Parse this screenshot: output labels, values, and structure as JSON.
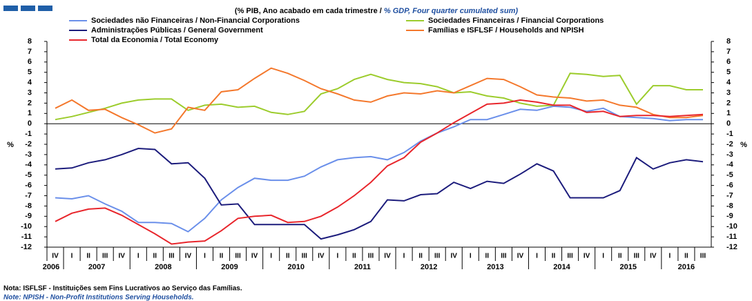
{
  "chart_data": {
    "type": "line",
    "title": "(% PIB, Ano acabado em cada trimestre / ",
    "subtitle": "% GDP, Four quarter cumulated sum)",
    "y_label": "%",
    "y2_label": "%",
    "categories": [
      "IV",
      "I",
      "II",
      "III",
      "IV",
      "I",
      "II",
      "III",
      "IV",
      "I",
      "II",
      "III",
      "IV",
      "I",
      "II",
      "III",
      "IV",
      "I",
      "II",
      "III",
      "IV",
      "I",
      "II",
      "III",
      "IV",
      "I",
      "II",
      "III",
      "IV",
      "I",
      "II",
      "III",
      "IV",
      "I",
      "II",
      "III",
      "IV",
      "I",
      "II",
      "III"
    ],
    "years": [
      "2006",
      "2007",
      "2008",
      "2009",
      "2010",
      "2011",
      "2012",
      "2013",
      "2014",
      "2015",
      "2016"
    ],
    "ylim": [
      -12,
      8
    ],
    "yticks": [
      -12,
      -11,
      -10,
      -9,
      -8,
      -7,
      -6,
      -5,
      -4,
      -3,
      -2,
      -1,
      0,
      1,
      2,
      3,
      4,
      5,
      6,
      7,
      8
    ],
    "y2lim": [
      -12,
      8
    ],
    "y2ticks": [
      -12,
      -11,
      -10,
      -9,
      -8,
      -7,
      -6,
      -5,
      -4,
      -3,
      -2,
      -1,
      0,
      1,
      2,
      3,
      4,
      5,
      6,
      7,
      8
    ],
    "series": [
      {
        "name": "Sociedades não Financeiras / Non-Financial Corporations",
        "color": "#6a8fea",
        "values": [
          -7.2,
          -7.3,
          -7.0,
          -7.8,
          -8.5,
          -9.6,
          -9.6,
          -9.7,
          -10.5,
          -9.2,
          -7.4,
          -6.2,
          -5.3,
          -5.5,
          -5.5,
          -5.1,
          -4.2,
          -3.5,
          -3.3,
          -3.2,
          -3.5,
          -2.8,
          -1.7,
          -0.9,
          -0.3,
          0.4,
          0.4,
          0.9,
          1.4,
          1.3,
          1.7,
          1.6,
          1.2,
          1.5,
          0.7,
          0.6,
          0.5,
          0.3,
          0.4,
          0.4
        ]
      },
      {
        "name": "Sociedades Financeiras / Financial Corporations",
        "color": "#9ccc2c",
        "values": [
          0.4,
          0.7,
          1.1,
          1.5,
          2.0,
          2.3,
          2.4,
          2.4,
          1.3,
          1.8,
          1.9,
          1.6,
          1.7,
          1.1,
          0.9,
          1.2,
          2.9,
          3.4,
          4.3,
          4.8,
          4.3,
          4.0,
          3.9,
          3.6,
          3.0,
          3.1,
          2.7,
          2.5,
          2.0,
          1.7,
          1.8,
          4.9,
          4.8,
          4.6,
          4.7,
          1.9,
          3.7,
          3.7,
          3.3,
          3.3
        ]
      },
      {
        "name": "Administrações Públicas / General Government",
        "color": "#1c1c7c",
        "values": [
          -4.4,
          -4.3,
          -3.8,
          -3.5,
          -3.0,
          -2.4,
          -2.5,
          -3.9,
          -3.8,
          -5.3,
          -7.9,
          -7.8,
          -9.8,
          -9.8,
          -9.8,
          -9.8,
          -11.2,
          -10.8,
          -10.3,
          -9.5,
          -7.4,
          -7.5,
          -6.9,
          -6.8,
          -5.7,
          -6.3,
          -5.6,
          -5.8,
          -4.9,
          -3.9,
          -4.6,
          -7.2,
          -7.2,
          -7.2,
          -6.5,
          -3.3,
          -4.4,
          -3.8,
          -3.5,
          -3.7
        ]
      },
      {
        "name": "Famílias e ISFLSF / Households and NPISH",
        "color": "#f4782c",
        "values": [
          1.5,
          2.3,
          1.3,
          1.4,
          0.6,
          -0.1,
          -0.9,
          -0.5,
          1.6,
          1.3,
          3.1,
          3.3,
          4.4,
          5.4,
          4.9,
          4.2,
          3.4,
          2.9,
          2.3,
          2.1,
          2.7,
          3.0,
          2.9,
          3.2,
          3.0,
          3.7,
          4.4,
          4.3,
          3.6,
          2.8,
          2.6,
          2.5,
          2.2,
          2.3,
          1.8,
          1.6,
          0.9,
          0.6,
          0.6,
          0.8
        ]
      },
      {
        "name": "Total da Economia / Total Economy",
        "color": "#e8262c",
        "values": [
          -9.5,
          -8.7,
          -8.3,
          -8.2,
          -8.9,
          -9.8,
          -10.7,
          -11.7,
          -11.5,
          -11.4,
          -10.4,
          -9.2,
          -9.0,
          -8.9,
          -9.6,
          -9.5,
          -9.0,
          -8.1,
          -7.0,
          -5.7,
          -4.1,
          -3.3,
          -1.8,
          -0.9,
          0.1,
          1.0,
          1.9,
          2.0,
          2.3,
          2.1,
          1.8,
          1.8,
          1.1,
          1.2,
          0.7,
          0.8,
          0.8,
          0.7,
          0.8,
          0.9
        ]
      }
    ]
  },
  "notes": [
    "Nota: ISFLSF - Instituições sem Fins Lucrativos ao Serviço das Famílias.",
    "Note: NPISH - Non-Profit Institutions Serving Households."
  ]
}
